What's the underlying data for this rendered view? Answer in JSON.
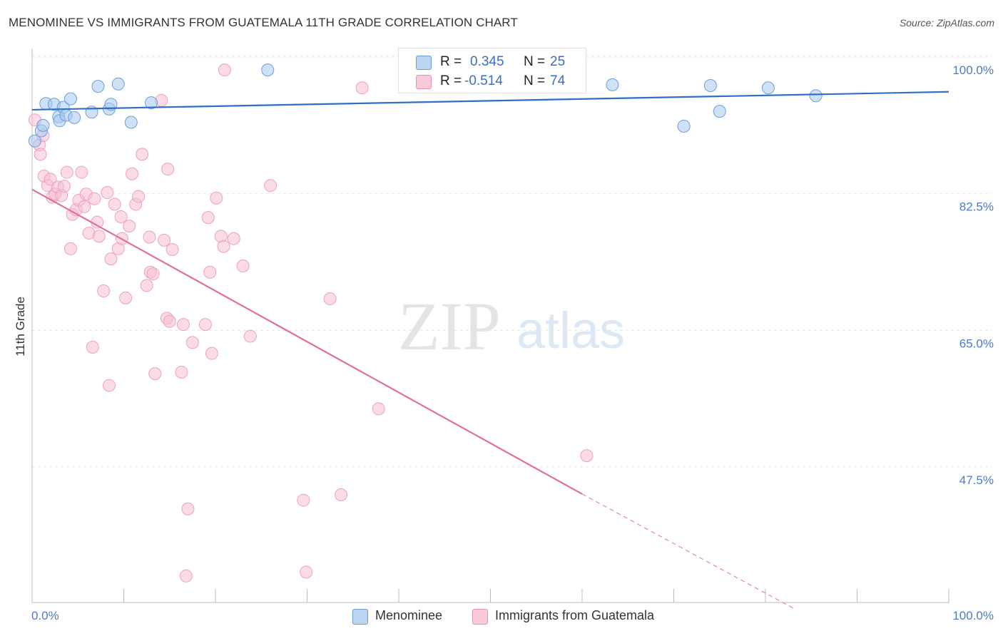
{
  "title": "MENOMINEE VS IMMIGRANTS FROM GUATEMALA 11TH GRADE CORRELATION CHART",
  "source": "Source: ZipAtlas.com",
  "watermark": {
    "zip": "ZIP",
    "atlas": "atlas"
  },
  "legend": {
    "r_label": "R =",
    "n_label": "N =",
    "rows": [
      {
        "r": "0.345",
        "n": "25",
        "color": "#a8c8f0",
        "border": "#6a9ad8"
      },
      {
        "r": "-0.514",
        "n": "74",
        "color": "#f8c0d4",
        "border": "#e890b0"
      }
    ]
  },
  "bottom_legend": [
    "Menominee",
    "Immigrants from Guatemala"
  ],
  "chart_data": {
    "type": "scatter",
    "title": "MENOMINEE VS IMMIGRANTS FROM GUATEMALA 11TH GRADE CORRELATION CHART",
    "xlabel": "",
    "ylabel": "11th Grade",
    "xlim": [
      0,
      100
    ],
    "ylim": [
      32.5,
      103
    ],
    "x_tick_labels": [
      "0.0%",
      "100.0%"
    ],
    "y_tick_labels": [
      "100.0%",
      "82.5%",
      "65.0%",
      "47.5%"
    ],
    "y_ticks": [
      100,
      82.5,
      65,
      47.5
    ],
    "grid": true,
    "colors": {
      "blue": "#4a86d0",
      "blue_fill": "#a8c8f0",
      "pink": "#e0709a",
      "pink_fill": "#f8c0d4"
    },
    "series": [
      {
        "name": "Menominee",
        "r": 0.345,
        "n": 25,
        "trend": {
          "x": [
            0,
            100
          ],
          "y": [
            94.8,
            97.1
          ]
        },
        "points": [
          [
            0.3,
            90.8
          ],
          [
            1.0,
            92.1
          ],
          [
            1.2,
            92.8
          ],
          [
            1.5,
            95.6
          ],
          [
            2.4,
            95.5
          ],
          [
            2.9,
            93.9
          ],
          [
            3.0,
            93.4
          ],
          [
            3.4,
            95.1
          ],
          [
            3.7,
            94.1
          ],
          [
            4.2,
            96.2
          ],
          [
            4.6,
            93.8
          ],
          [
            6.5,
            94.5
          ],
          [
            7.2,
            97.8
          ],
          [
            8.4,
            94.9
          ],
          [
            8.6,
            95.5
          ],
          [
            9.4,
            98.1
          ],
          [
            10.8,
            93.2
          ],
          [
            13.0,
            95.7
          ],
          [
            25.7,
            99.9
          ],
          [
            63.3,
            98.0
          ],
          [
            71.1,
            92.7
          ],
          [
            74.0,
            97.9
          ],
          [
            75.0,
            94.6
          ],
          [
            80.3,
            97.6
          ],
          [
            85.5,
            96.6
          ]
        ]
      },
      {
        "name": "Immigrants from Guatemala",
        "r": -0.514,
        "n": 74,
        "trend": {
          "x": [
            0,
            60
          ],
          "y": [
            84.6,
            45.6
          ],
          "dash_x": [
            60,
            83
          ],
          "dash_y": [
            45.6,
            31
          ]
        },
        "points": [
          [
            0.3,
            93.5
          ],
          [
            0.8,
            90.3
          ],
          [
            0.9,
            89.1
          ],
          [
            1.3,
            86.3
          ],
          [
            1.7,
            85.1
          ],
          [
            2.0,
            85.9
          ],
          [
            2.2,
            83.6
          ],
          [
            2.5,
            84.0
          ],
          [
            2.8,
            84.9
          ],
          [
            3.2,
            83.8
          ],
          [
            3.5,
            85.0
          ],
          [
            3.8,
            86.8
          ],
          [
            4.2,
            77.0
          ],
          [
            4.4,
            81.4
          ],
          [
            4.8,
            82.0
          ],
          [
            5.1,
            83.2
          ],
          [
            5.4,
            86.8
          ],
          [
            5.7,
            82.4
          ],
          [
            5.9,
            84.0
          ],
          [
            6.2,
            79.0
          ],
          [
            6.6,
            64.4
          ],
          [
            6.8,
            83.4
          ],
          [
            7.1,
            80.4
          ],
          [
            7.3,
            78.6
          ],
          [
            7.8,
            71.6
          ],
          [
            8.2,
            84.2
          ],
          [
            8.4,
            59.5
          ],
          [
            8.6,
            75.7
          ],
          [
            9.0,
            82.7
          ],
          [
            9.4,
            77.0
          ],
          [
            9.7,
            81.1
          ],
          [
            9.8,
            78.3
          ],
          [
            10.2,
            70.7
          ],
          [
            10.6,
            79.9
          ],
          [
            10.9,
            86.6
          ],
          [
            11.3,
            82.7
          ],
          [
            11.6,
            83.7
          ],
          [
            12.0,
            89.1
          ],
          [
            12.5,
            72.3
          ],
          [
            12.9,
            74.0
          ],
          [
            12.8,
            78.5
          ],
          [
            13.2,
            73.8
          ],
          [
            13.4,
            61.0
          ],
          [
            14.1,
            96.0
          ],
          [
            14.4,
            78.1
          ],
          [
            14.7,
            68.1
          ],
          [
            14.8,
            87.2
          ],
          [
            15.0,
            67.7
          ],
          [
            15.3,
            76.9
          ],
          [
            16.3,
            61.2
          ],
          [
            16.5,
            67.3
          ],
          [
            16.8,
            35.1
          ],
          [
            17.0,
            43.7
          ],
          [
            17.5,
            65.0
          ],
          [
            18.9,
            67.3
          ],
          [
            19.2,
            81.0
          ],
          [
            19.4,
            74.0
          ],
          [
            19.6,
            63.6
          ],
          [
            20.1,
            83.5
          ],
          [
            20.6,
            78.6
          ],
          [
            20.9,
            77.3
          ],
          [
            21.0,
            99.9
          ],
          [
            22.0,
            78.3
          ],
          [
            23.0,
            74.8
          ],
          [
            23.8,
            65.8
          ],
          [
            26.0,
            85.1
          ],
          [
            29.6,
            44.8
          ],
          [
            29.9,
            35.6
          ],
          [
            32.5,
            70.6
          ],
          [
            33.7,
            45.5
          ],
          [
            36.0,
            97.6
          ],
          [
            37.8,
            56.5
          ],
          [
            60.5,
            50.5
          ],
          [
            1.2,
            91.5
          ]
        ]
      }
    ]
  }
}
